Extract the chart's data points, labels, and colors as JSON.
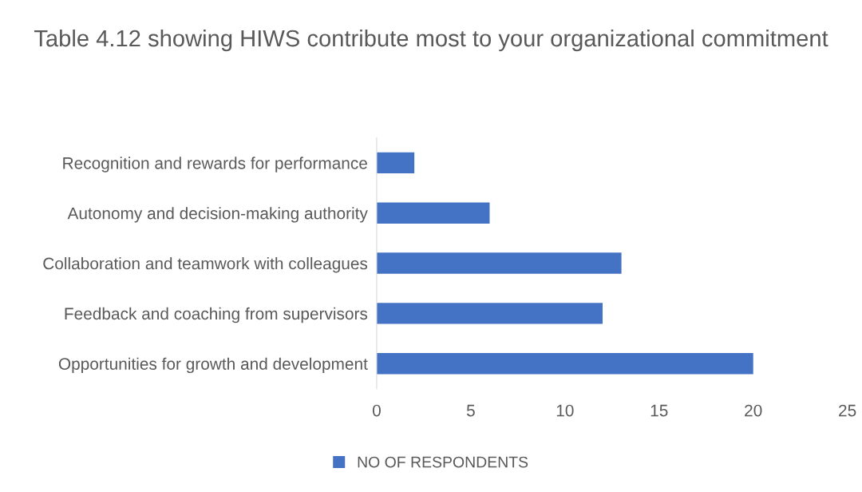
{
  "chart_data": {
    "type": "bar",
    "orientation": "horizontal",
    "title": "Table 4.12 showing HIWS contribute most to your organizational commitment",
    "categories": [
      "Recognition and rewards for performance",
      "Autonomy and decision-making authority",
      "Collaboration and teamwork with colleagues",
      "Feedback and coaching from supervisors",
      "Opportunities for growth and development"
    ],
    "series": [
      {
        "name": "NO OF RESPONDENTS",
        "color": "#4472c4",
        "values": [
          2,
          6,
          13,
          12,
          20
        ]
      }
    ],
    "xlim": [
      0,
      25
    ],
    "xticks": [
      0,
      5,
      10,
      15,
      20,
      25
    ],
    "grid": false,
    "legend": "bottom"
  }
}
